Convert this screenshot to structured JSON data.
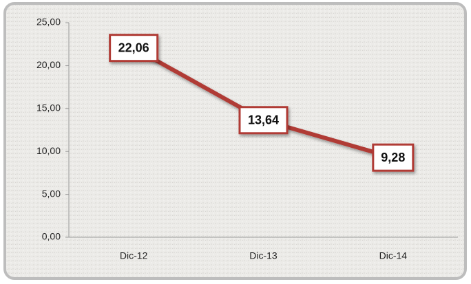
{
  "chart_data": {
    "type": "line",
    "categories": [
      "Dic-12",
      "Dic-13",
      "Dic-14"
    ],
    "series": [
      {
        "color": "#b03a36",
        "values": [
          22.06,
          13.64,
          9.28
        ],
        "value_labels": [
          "22,06",
          "13,64",
          "9,28"
        ]
      }
    ],
    "ylim": [
      0,
      25
    ],
    "yticks": [
      {
        "value": 0,
        "label": "0,00"
      },
      {
        "value": 5,
        "label": "5,00"
      },
      {
        "value": 10,
        "label": "10,00"
      },
      {
        "value": 15,
        "label": "15,00"
      },
      {
        "value": 20,
        "label": "20,00"
      },
      {
        "value": 25,
        "label": "25,00"
      }
    ]
  }
}
